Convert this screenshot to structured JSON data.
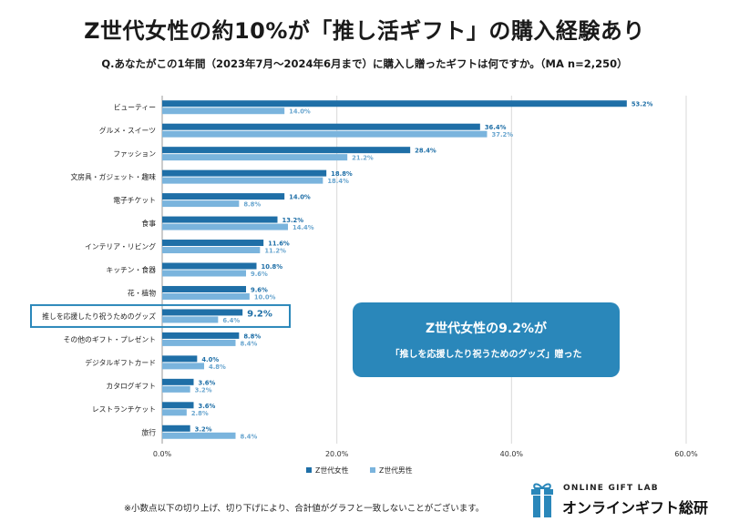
{
  "title": "Z世代女性の約10%が「推し活ギフト」の購入経験あり",
  "subtitle": "Q.あなたがこの1年間（2023年7月～2024年6月まで）に購入し贈ったギフトは何ですか。（MA n=2,250）",
  "callout": {
    "main": "Z世代女性の9.2%が",
    "sub": "「推しを応援したり祝うためのグッズ」贈った"
  },
  "footnote": "※小数点以下の切り上げ、切り下げにより、合計値がグラフと一致しないことがございます。",
  "logo": {
    "english": "ONLINE GIFT LAB",
    "japanese": "オンラインギフト総研",
    "icon": "gift-box-icon"
  },
  "colors": {
    "female": "#1f6fa7",
    "male": "#7ab4dd",
    "highlight_box": "#2a87ba",
    "label_female": "#1f6fa7",
    "label_male": "#6aa6cf"
  },
  "chart_data": {
    "type": "bar",
    "orientation": "horizontal",
    "categories": [
      "ビューティー",
      "グルメ・スイーツ",
      "ファッション",
      "文房具・ガジェット・趣味",
      "電子チケット",
      "食事",
      "インテリア・リビング",
      "キッチン・食器",
      "花・植物",
      "推しを応援したり祝うためのグッズ",
      "その他のギフト・プレゼント",
      "デジタルギフトカード",
      "カタログギフト",
      "レストランチケット",
      "旅行"
    ],
    "series": [
      {
        "name": "Z世代女性",
        "values": [
          53.2,
          36.4,
          28.4,
          18.8,
          14.0,
          13.2,
          11.6,
          10.8,
          9.6,
          9.2,
          8.8,
          4.0,
          3.6,
          3.6,
          3.2
        ]
      },
      {
        "name": "Z世代男性",
        "values": [
          14.0,
          37.2,
          21.2,
          18.4,
          8.8,
          14.4,
          11.2,
          9.6,
          10.0,
          6.4,
          8.4,
          4.8,
          3.2,
          2.8,
          8.4
        ]
      }
    ],
    "highlighted_category": "推しを応援したり祝うためのグッズ",
    "xlim": [
      0,
      60
    ],
    "xticks": [
      "0.0%",
      "20.0%",
      "40.0%",
      "60.0%"
    ],
    "value_suffix": "%",
    "grid": true,
    "legend_position": "bottom"
  }
}
